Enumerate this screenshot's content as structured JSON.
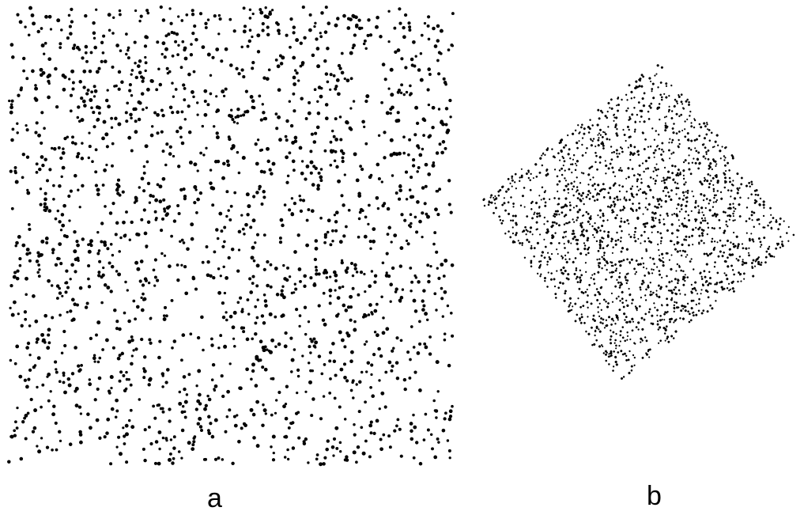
{
  "figure": {
    "panels": [
      {
        "label": "a",
        "dot_color": "#000000"
      },
      {
        "label": "b",
        "dot_color": "#000000"
      }
    ],
    "background_color": "#ffffff"
  }
}
